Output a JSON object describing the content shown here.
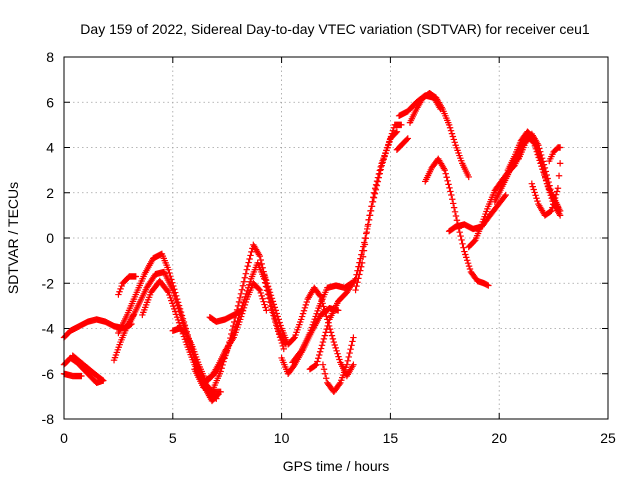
{
  "chart_data": {
    "type": "scatter",
    "title": "Day 159 of 2022, Sidereal Day-to-day VTEC variation (SDTVAR) for receiver ceu1",
    "xlabel": "GPS time / hours",
    "ylabel": "SDTVAR / TECUs",
    "xlim": [
      0,
      25
    ],
    "ylim": [
      -8,
      8
    ],
    "x_ticks": [
      "0",
      "5",
      "10",
      "15",
      "20",
      "25"
    ],
    "y_ticks": [
      "-8",
      "-6",
      "-4",
      "-2",
      "0",
      "2",
      "4",
      "6",
      "8"
    ],
    "grid": true,
    "marker": "plus",
    "series_color": "#ff0000",
    "series": [
      {
        "x": [
          0.0,
          0.3,
          0.7,
          1.1,
          1.5,
          1.9,
          2.3,
          2.8,
          3.1
        ],
        "y": [
          -4.4,
          -4.1,
          -3.9,
          -3.7,
          -3.6,
          -3.7,
          -3.9,
          -4.0,
          -3.8
        ]
      },
      {
        "x": [
          0.0,
          0.4,
          0.8
        ],
        "y": [
          -6.0,
          -6.1,
          -6.1
        ]
      },
      {
        "x": [
          0.0,
          0.3,
          0.6,
          0.9,
          1.2,
          1.5,
          1.8
        ],
        "y": [
          -5.6,
          -5.3,
          -5.5,
          -5.8,
          -6.1,
          -6.4,
          -6.3
        ]
      },
      {
        "x": [
          0.4,
          0.9,
          1.4,
          1.8
        ],
        "y": [
          -5.2,
          -5.6,
          -6.0,
          -6.3
        ]
      },
      {
        "x": [
          2.3,
          2.6,
          2.9,
          3.2
        ],
        "y": [
          -5.4,
          -4.6,
          -3.9,
          -3.4
        ]
      },
      {
        "x": [
          2.5,
          2.7,
          3.0,
          3.3
        ],
        "y": [
          -2.5,
          -2.0,
          -1.7,
          -1.7
        ]
      },
      {
        "x": [
          2.5,
          2.9,
          3.3,
          3.7,
          4.1,
          4.5,
          4.8,
          5.2,
          5.6,
          6.0,
          6.4,
          6.8,
          7.1
        ],
        "y": [
          -4.2,
          -3.4,
          -2.5,
          -1.6,
          -0.9,
          -0.7,
          -1.4,
          -2.7,
          -4.0,
          -5.3,
          -6.5,
          -7.2,
          -6.9
        ]
      },
      {
        "x": [
          3.0,
          3.4,
          3.8,
          4.2,
          4.6,
          5.0,
          5.4,
          5.8,
          6.2,
          6.6,
          7.0
        ],
        "y": [
          -3.8,
          -3.0,
          -2.2,
          -1.6,
          -1.5,
          -2.3,
          -3.5,
          -4.8,
          -5.9,
          -6.7,
          -7.1
        ]
      },
      {
        "x": [
          3.6,
          4.0,
          4.4,
          4.8,
          5.2,
          5.6,
          6.0,
          6.4,
          6.8,
          7.2
        ],
        "y": [
          -3.4,
          -2.4,
          -1.9,
          -2.4,
          -3.5,
          -4.6,
          -5.6,
          -6.3,
          -6.8,
          -6.8
        ]
      },
      {
        "x": [
          5.0,
          5.3,
          5.6,
          5.9,
          6.2,
          6.5,
          6.8,
          7.1,
          7.4,
          7.8,
          8.1,
          8.4,
          8.7,
          9.0,
          9.3
        ],
        "y": [
          -4.1,
          -4.0,
          -4.2,
          -4.8,
          -5.6,
          -6.3,
          -6.1,
          -5.6,
          -5.0,
          -4.4,
          -3.6,
          -2.7,
          -2.0,
          -2.3,
          -3.2
        ]
      },
      {
        "x": [
          6.0,
          6.4,
          6.8,
          7.2,
          7.6,
          8.0,
          8.4,
          8.7,
          9.0,
          9.3,
          9.6,
          9.9,
          10.2
        ],
        "y": [
          -5.8,
          -6.6,
          -6.8,
          -5.9,
          -4.6,
          -3.0,
          -1.4,
          -0.3,
          -0.8,
          -2.0,
          -3.2,
          -4.2,
          -4.7
        ]
      },
      {
        "x": [
          6.6,
          7.0,
          7.4,
          7.8,
          8.2,
          8.6,
          8.9,
          9.2,
          9.5,
          9.8,
          10.1
        ],
        "y": [
          -6.3,
          -5.9,
          -5.2,
          -4.2,
          -3.0,
          -1.8,
          -1.1,
          -1.8,
          -3.0,
          -4.0,
          -4.9
        ]
      },
      {
        "x": [
          6.7,
          7.0,
          7.4,
          7.8,
          8.2
        ],
        "y": [
          -3.5,
          -3.7,
          -3.6,
          -3.4,
          -3.2
        ]
      },
      {
        "x": [
          9.2,
          9.6,
          10.0,
          10.3,
          10.6,
          10.9,
          11.2,
          11.5,
          11.8,
          12.1,
          12.4,
          12.7,
          13.0,
          13.3
        ],
        "y": [
          -1.6,
          -2.8,
          -4.0,
          -4.7,
          -4.4,
          -3.6,
          -2.7,
          -2.2,
          -2.6,
          -3.6,
          -4.6,
          -5.5,
          -6.1,
          -5.6
        ]
      },
      {
        "x": [
          10.0,
          10.3,
          10.6,
          11.0,
          11.4,
          11.8,
          12.2,
          12.6
        ],
        "y": [
          -5.3,
          -6.0,
          -5.6,
          -4.9,
          -4.1,
          -3.4,
          -3.1,
          -3.2
        ]
      },
      {
        "x": [
          10.5,
          10.9,
          11.3,
          11.7,
          12.1,
          12.5,
          12.9,
          13.2
        ],
        "y": [
          -5.5,
          -5.0,
          -4.2,
          -3.1,
          -2.2,
          -2.1,
          -2.2,
          -2.0
        ]
      },
      {
        "x": [
          11.3,
          11.6,
          11.9,
          12.2,
          12.6,
          13.0,
          13.4,
          13.8,
          14.2,
          14.6,
          15.0,
          15.3
        ],
        "y": [
          -5.8,
          -5.6,
          -4.6,
          -3.6,
          -2.8,
          -2.4,
          -1.8,
          -0.2,
          1.6,
          3.2,
          4.4,
          4.7
        ]
      },
      {
        "x": [
          11.9,
          12.1,
          12.4,
          12.7,
          13.0,
          13.3
        ],
        "y": [
          -5.6,
          -6.4,
          -6.8,
          -6.4,
          -5.6,
          -4.4
        ]
      },
      {
        "x": [
          13.4,
          13.7,
          14.0,
          14.3,
          14.6,
          14.9,
          15.2,
          15.5
        ],
        "y": [
          -2.3,
          -1.1,
          0.8,
          2.2,
          3.3,
          4.1,
          5.0,
          5.0
        ]
      },
      {
        "x": [
          15.3,
          15.5,
          15.8
        ],
        "y": [
          3.9,
          4.1,
          4.4
        ]
      },
      {
        "x": [
          15.4,
          15.8,
          16.2,
          16.6,
          17.0,
          17.3
        ],
        "y": [
          5.4,
          5.6,
          6.0,
          6.3,
          6.2,
          5.7
        ]
      },
      {
        "x": [
          15.9,
          16.2,
          16.5,
          16.8,
          17.1,
          17.4,
          17.7,
          18.0,
          18.3,
          18.6
        ],
        "y": [
          5.1,
          5.7,
          6.2,
          6.4,
          6.2,
          5.7,
          5.0,
          4.1,
          3.3,
          2.7
        ]
      },
      {
        "x": [
          16.6,
          16.9,
          17.2,
          17.5,
          17.8,
          18.1,
          18.4,
          18.7,
          19.0,
          19.3,
          19.5
        ],
        "y": [
          2.5,
          3.1,
          3.5,
          3.0,
          1.9,
          0.6,
          -0.6,
          -1.5,
          -1.9,
          -2.0,
          -2.1
        ]
      },
      {
        "x": [
          17.7,
          18.0,
          18.4,
          18.8,
          19.2,
          19.5,
          19.9,
          20.3
        ],
        "y": [
          0.3,
          0.5,
          0.6,
          0.4,
          0.5,
          0.9,
          1.4,
          1.9
        ]
      },
      {
        "x": [
          18.6,
          18.9,
          19.2,
          19.5,
          19.8,
          20.1,
          20.4,
          20.7,
          21.0,
          21.3
        ],
        "y": [
          -0.4,
          -0.1,
          0.6,
          1.4,
          2.1,
          2.5,
          2.9,
          3.2,
          3.8,
          4.5
        ]
      },
      {
        "x": [
          19.8,
          20.1,
          20.4,
          20.7,
          21.0,
          21.3,
          21.6,
          21.9,
          22.2,
          22.5,
          22.8
        ],
        "y": [
          1.6,
          2.2,
          2.8,
          3.4,
          4.0,
          4.5,
          4.2,
          3.3,
          2.4,
          1.7,
          1.2
        ]
      },
      {
        "x": [
          20.4,
          20.7,
          21.0,
          21.3,
          21.6,
          21.9,
          22.2,
          22.5,
          22.8
        ],
        "y": [
          3.0,
          3.6,
          4.3,
          4.7,
          4.4,
          3.5,
          2.4,
          1.5,
          1.0
        ]
      },
      {
        "x": [
          20.9,
          21.2,
          21.5,
          21.8,
          22.1,
          22.4,
          22.7
        ],
        "y": [
          3.5,
          4.2,
          4.6,
          4.1,
          3.1,
          2.0,
          1.4
        ]
      },
      {
        "x": [
          21.5,
          21.8,
          22.1,
          22.4,
          22.7,
          22.8
        ],
        "y": [
          2.4,
          1.5,
          1.0,
          1.2,
          2.2,
          3.3
        ]
      },
      {
        "x": [
          22.3,
          22.5,
          22.7,
          22.8
        ],
        "y": [
          3.4,
          3.8,
          4.0,
          4.0
        ]
      }
    ]
  }
}
